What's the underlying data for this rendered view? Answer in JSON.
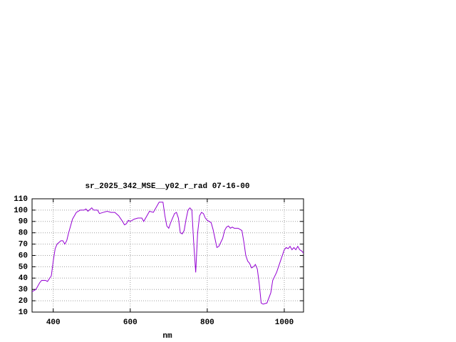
{
  "chart_data": {
    "type": "line",
    "title": "sr_2025_342_MSE__y02_r_rad 07-16-00",
    "xlabel": "nm",
    "xlim": [
      345,
      1050
    ],
    "xticks": [
      400,
      600,
      800,
      1000
    ],
    "ylim": [
      10,
      110
    ],
    "yticks": [
      10,
      20,
      30,
      40,
      50,
      60,
      70,
      80,
      90,
      100,
      110
    ],
    "grid": true,
    "x": [
      345,
      355,
      365,
      370,
      380,
      385,
      395,
      400,
      405,
      410,
      420,
      425,
      430,
      435,
      440,
      450,
      460,
      470,
      480,
      485,
      490,
      500,
      505,
      515,
      520,
      530,
      540,
      550,
      560,
      570,
      580,
      585,
      590,
      595,
      600,
      610,
      620,
      630,
      635,
      645,
      650,
      660,
      670,
      675,
      685,
      690,
      695,
      700,
      705,
      715,
      720,
      725,
      730,
      735,
      740,
      745,
      750,
      755,
      760,
      765,
      770,
      775,
      780,
      785,
      790,
      795,
      800,
      810,
      815,
      820,
      825,
      830,
      840,
      845,
      850,
      855,
      860,
      865,
      870,
      880,
      885,
      890,
      895,
      900,
      905,
      910,
      915,
      920,
      925,
      930,
      935,
      940,
      945,
      955,
      965,
      970,
      980,
      990,
      1000,
      1005,
      1010,
      1015,
      1020,
      1025,
      1030,
      1035,
      1040,
      1045,
      1050
    ],
    "series": [
      {
        "color": "#9400d3",
        "values": [
          28,
          30,
          36,
          38,
          38,
          37,
          42,
          55,
          66,
          70,
          73,
          73,
          70,
          73,
          80,
          92,
          98,
          100,
          100,
          101,
          99,
          102,
          100,
          100,
          97,
          98,
          99,
          98,
          98,
          95,
          90,
          87,
          88,
          91,
          90,
          92,
          93,
          93,
          90,
          96,
          99,
          98,
          104,
          107,
          107,
          95,
          86,
          84,
          89,
          97,
          98,
          93,
          80,
          79,
          82,
          92,
          100,
          102,
          100,
          70,
          45,
          80,
          95,
          98,
          97,
          93,
          91,
          89,
          83,
          75,
          67,
          68,
          75,
          82,
          85,
          86,
          84,
          85,
          84,
          84,
          83,
          82,
          72,
          60,
          55,
          53,
          49,
          50,
          52,
          48,
          35,
          18,
          17,
          18,
          27,
          38,
          45,
          55,
          65,
          67,
          66,
          68,
          65,
          67,
          65,
          68,
          65,
          64,
          62
        ]
      }
    ]
  }
}
